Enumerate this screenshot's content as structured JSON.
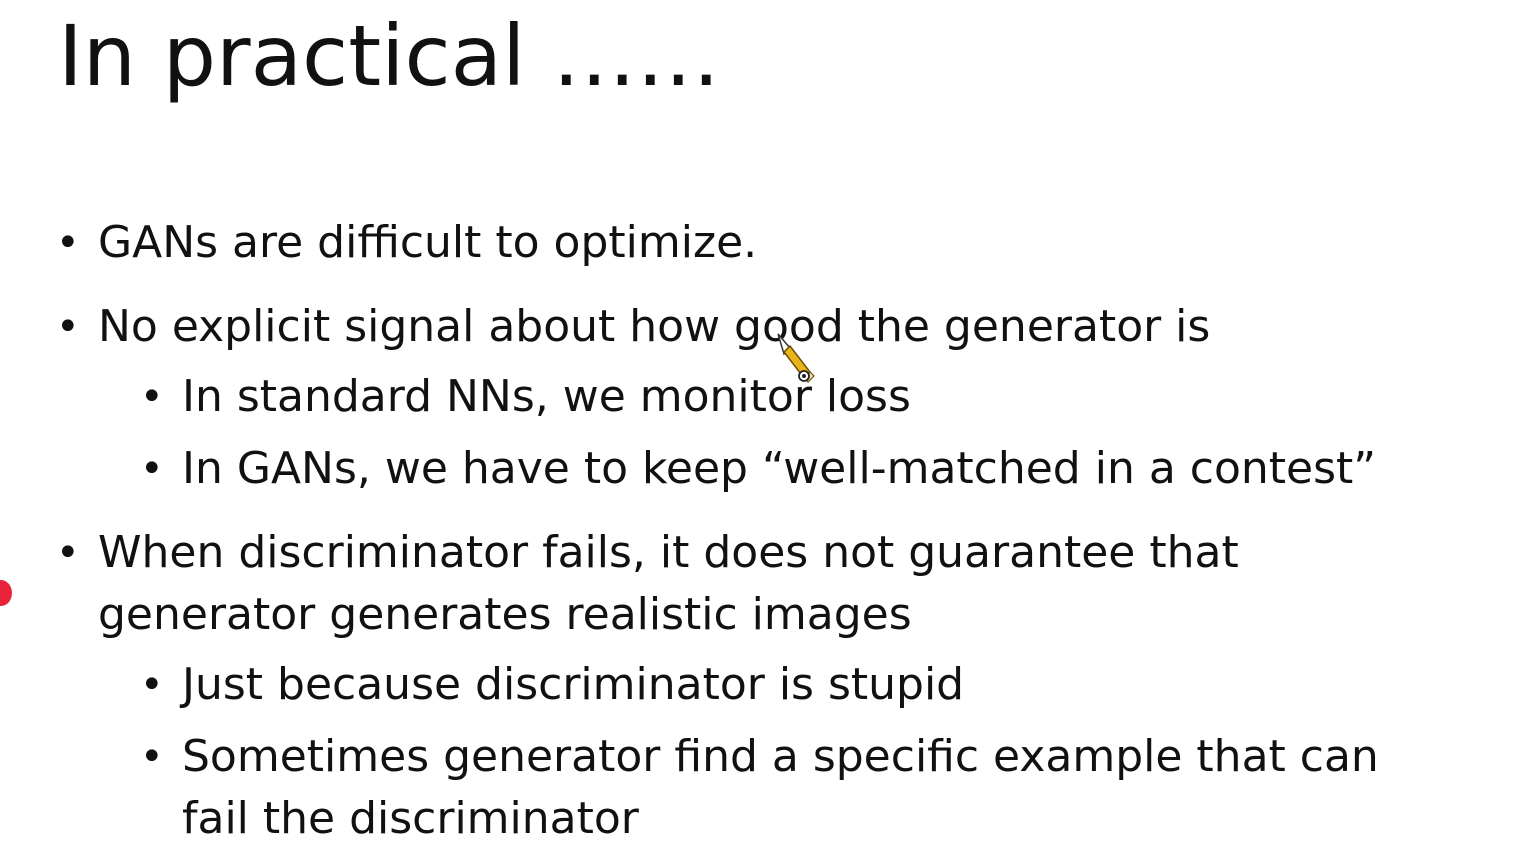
{
  "slide": {
    "title": "In practical ……",
    "bullets": [
      {
        "text": "GANs are difficult to optimize."
      },
      {
        "text": "No explicit signal about how good the generator is"
      },
      {
        "text": "In standard NNs, we monitor loss"
      },
      {
        "text": "In GANs, we have to keep “well-matched in a contest”"
      },
      {
        "text": "When discriminator fails, it does not guarantee that"
      },
      {
        "text": "generator generates realistic images"
      },
      {
        "text": "Just because discriminator is stupid"
      },
      {
        "text": "Sometimes generator find a specific example that can"
      },
      {
        "text": "fail the discriminator"
      }
    ]
  },
  "icons": {
    "cursor": "pencil-pointer-icon",
    "marker": "red-dot-icon"
  },
  "colors": {
    "text": "#111111",
    "background": "#ffffff",
    "marker": "#e8233a",
    "cursor": "#e8b41a"
  }
}
